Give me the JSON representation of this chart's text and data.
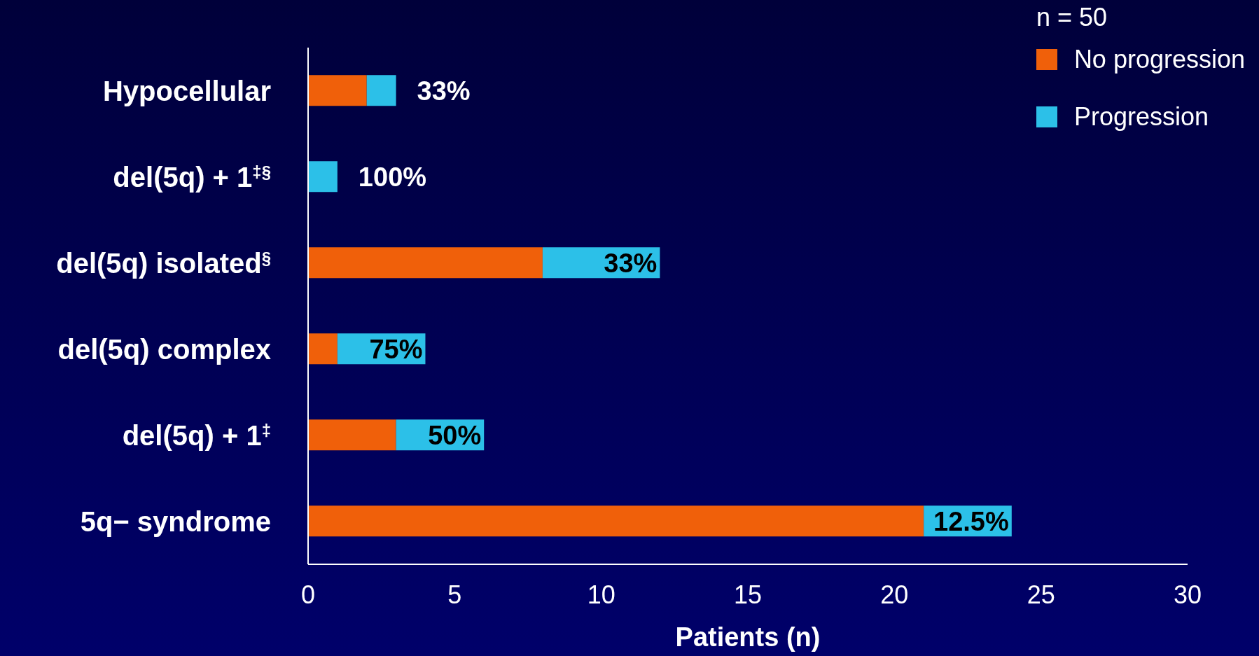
{
  "chart_data": {
    "type": "bar",
    "orientation": "horizontal",
    "stacked": true,
    "categories": [
      "Hypocellular",
      "del(5q) + 1$^{‡§}$",
      "del(5q) isolated$^{§}$",
      "del(5q) complex",
      "del(5q) + 1$^{‡}$",
      "5q− syndrome"
    ],
    "series": [
      {
        "name": "No progression",
        "color": "#f0600a",
        "values": [
          2,
          0,
          8,
          1,
          3,
          21
        ]
      },
      {
        "name": "Progression",
        "color": "#2cc0e8",
        "values": [
          1,
          1,
          4,
          3,
          3,
          3
        ]
      }
    ],
    "annotations": [
      {
        "text": "33%",
        "x": 3,
        "y": "Hypocellular"
      },
      {
        "text": "100%",
        "x": 1,
        "y": "del(5q) + 1$^{‡§}$"
      },
      {
        "text": "33%",
        "x": 12,
        "y": "del(5q) isolated$^{§}$"
      },
      {
        "text": "75%",
        "x": 4,
        "y": "del(5q) complex"
      },
      {
        "text": "50%",
        "x": 6,
        "y": "del(5q) + 1$^{‡}$"
      },
      {
        "text": "12.5%",
        "x": 24,
        "y": "5q− syndrome"
      }
    ],
    "xlim": [
      0,
      30
    ],
    "xticks": [
      0,
      5,
      10,
      15,
      20,
      25,
      30
    ],
    "xlabel": "Patients (n)",
    "legend_title": "n = 50",
    "legend": "top right",
    "grid": false
  }
}
